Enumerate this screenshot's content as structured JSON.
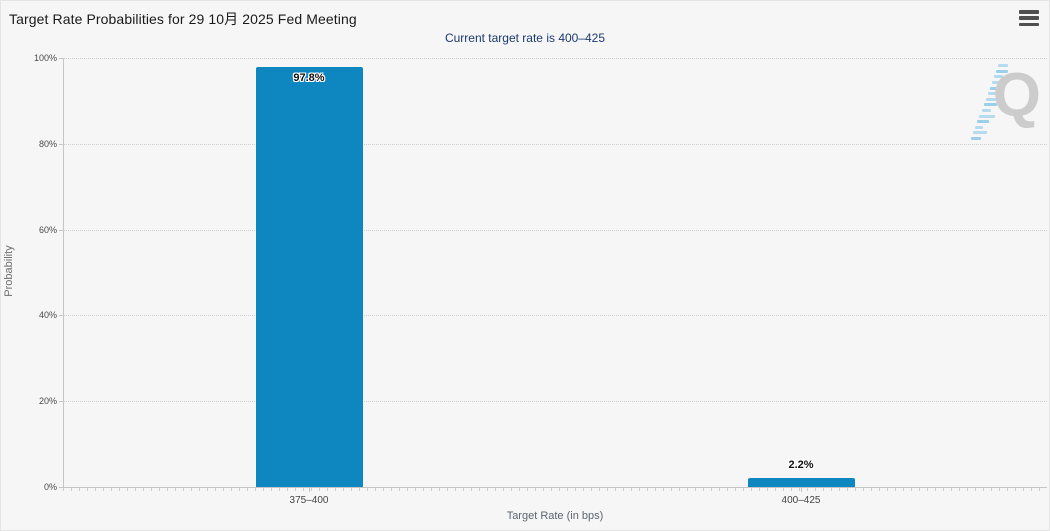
{
  "header": {
    "title": "Target Rate Probabilities for 29 10月 2025 Fed Meeting",
    "subtitle": "Current target rate is 400–425"
  },
  "icons": {
    "menu": "hamburger-menu-icon",
    "watermark": "q-logo-watermark"
  },
  "watermark": {
    "letter": "Q"
  },
  "colors": {
    "bar": "#0e87c0",
    "subtitle_text": "#1c3a6e",
    "grid": "#cfcfcf",
    "axis": "#c5c5c5",
    "background": "#f6f6f7",
    "watermark_gray": "#cccccc",
    "watermark_blue": "#9fd2ee"
  },
  "chart_data": {
    "type": "bar",
    "title": "Target Rate Probabilities for 29 10月 2025 Fed Meeting",
    "subtitle": "Current target rate is 400–425",
    "categories": [
      "375–400",
      "400–425"
    ],
    "values": [
      97.8,
      2.2
    ],
    "value_labels": [
      "97.8%",
      "2.2%"
    ],
    "xlabel": "Target Rate (in bps)",
    "ylabel": "Probability",
    "ylim": [
      0,
      100
    ],
    "yticks": [
      0,
      20,
      40,
      60,
      80,
      100
    ],
    "ytick_labels": [
      "0%",
      "20%",
      "40%",
      "60%",
      "80%",
      "100%"
    ],
    "grid": "horizontal-dotted",
    "legend": "none"
  }
}
